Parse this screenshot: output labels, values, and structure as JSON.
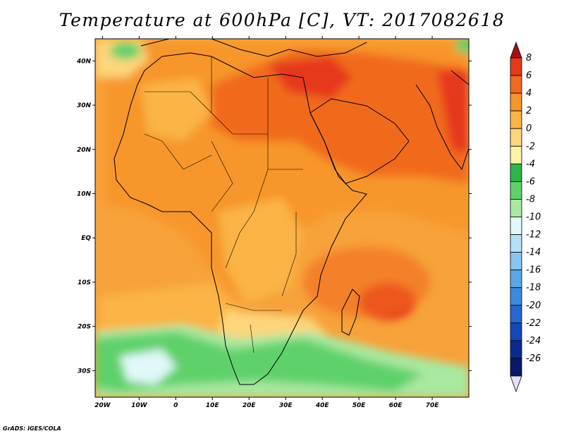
{
  "title": "Temperature at 600hPa [C], VT: 2017082618",
  "credit": "GrADS: IGES/COLA",
  "map": {
    "lon_labels": [
      "20W",
      "10W",
      "0",
      "10E",
      "20E",
      "30E",
      "40E",
      "50E",
      "60E",
      "70E"
    ],
    "lat_labels": [
      "40N",
      "30N",
      "20N",
      "10N",
      "EQ",
      "10S",
      "20S",
      "30S"
    ],
    "lon_range": [
      -22,
      80
    ],
    "lat_range": [
      -36,
      45
    ]
  },
  "colorbar": {
    "labels": [
      "8",
      "6",
      "4",
      "2",
      "0",
      "-2",
      "-4",
      "-6",
      "-8",
      "-10",
      "-12",
      "-14",
      "-16",
      "-18",
      "-20",
      "-22",
      "-24",
      "-26"
    ],
    "colors": [
      "#a50f15",
      "#e6391a",
      "#f16a1e",
      "#f7962a",
      "#fbb445",
      "#fdd57a",
      "#fef3a5",
      "#2db64b",
      "#5fd16b",
      "#a8e8a0",
      "#e0f8f8",
      "#b4e0f8",
      "#86c6f0",
      "#5aa8e8",
      "#3c8ae0",
      "#2468d0",
      "#1448b8",
      "#0a2a90",
      "#08186a",
      "#e4e0f8"
    ]
  },
  "colors": {
    "ocean_base": "#f7a23a",
    "land_base": "#f7962a",
    "warm_core": "#e6391a",
    "hot_spot": "#f16a1e",
    "cool_south": "#5fd16b",
    "cold_south": "#a8e8a0",
    "yellow": "#fdd57a"
  }
}
